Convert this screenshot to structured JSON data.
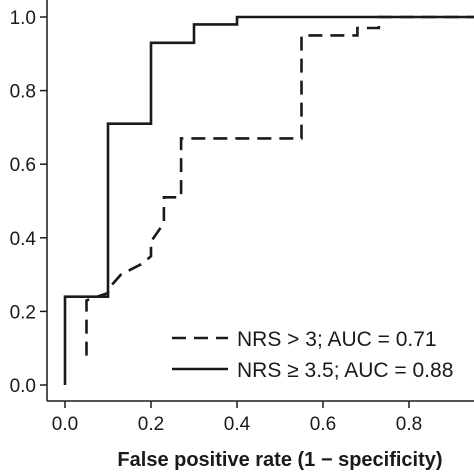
{
  "chart_data": {
    "type": "line",
    "title": "",
    "xlabel": "False positive rate (1 − specificity)",
    "ylabel": "",
    "xlim": [
      -0.05,
      1.05
    ],
    "ylim": [
      -0.04,
      1.04
    ],
    "x_ticks": [
      0.0,
      0.2,
      0.4,
      0.6,
      0.8
    ],
    "x_tick_labels": [
      "0.0",
      "0.2",
      "0.4",
      "0.6",
      "0.8"
    ],
    "y_ticks": [
      0.0,
      0.2,
      0.4,
      0.6,
      0.8,
      1.0
    ],
    "y_tick_labels": [
      "0.0",
      "0.2",
      "0.4",
      "0.6",
      "0.8",
      "1.0"
    ],
    "grid": false,
    "legend_position": "bottom-right",
    "series": [
      {
        "name": "NRS > 3; AUC = 0.71",
        "line_style": "dashed",
        "color": "#1a1a1a",
        "x": [
          0.05,
          0.05,
          0.05,
          0.05,
          0.1,
          0.1,
          0.13,
          0.13,
          0.18,
          0.18,
          0.2,
          0.2,
          0.23,
          0.23,
          0.27,
          0.27,
          0.27,
          0.55,
          0.55,
          0.55,
          0.68,
          0.68,
          0.73,
          0.73,
          1.0
        ],
        "y": [
          0.08,
          0.12,
          0.16,
          0.23,
          0.25,
          0.26,
          0.3,
          0.3,
          0.33,
          0.33,
          0.35,
          0.39,
          0.44,
          0.51,
          0.51,
          0.54,
          0.67,
          0.67,
          0.69,
          0.95,
          0.95,
          0.97,
          0.97,
          1.0,
          1.0
        ]
      },
      {
        "name": "NRS ≥ 3.5; AUC = 0.88",
        "line_style": "solid",
        "color": "#1a1a1a",
        "x": [
          0.0,
          0.0,
          0.1,
          0.1,
          0.2,
          0.2,
          0.3,
          0.3,
          0.4,
          0.4,
          1.0
        ],
        "y": [
          0.0,
          0.24,
          0.24,
          0.71,
          0.71,
          0.93,
          0.93,
          0.98,
          0.98,
          1.0,
          1.0
        ]
      }
    ]
  }
}
